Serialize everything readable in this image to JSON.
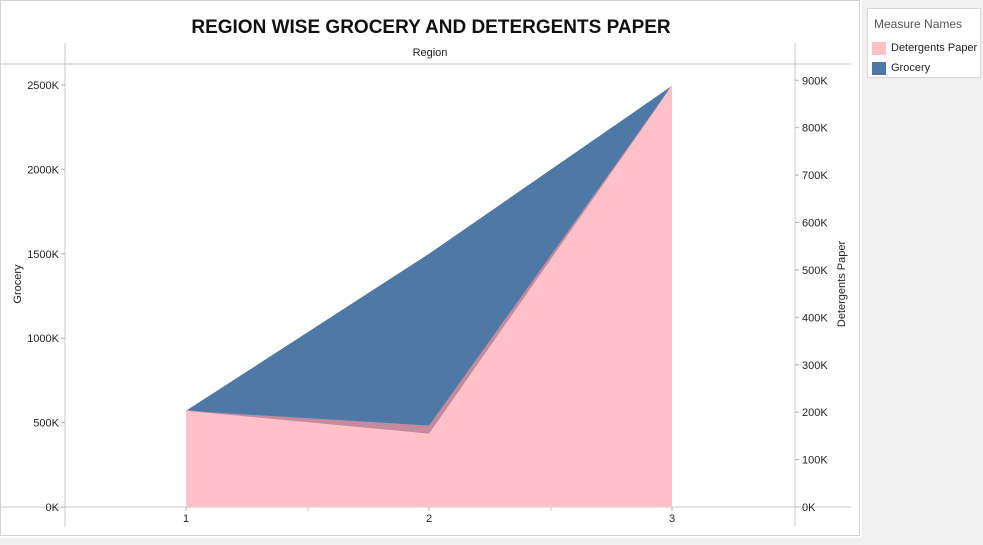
{
  "chart_data": {
    "type": "area",
    "title": "REGION WISE GROCERY AND DETERGENTS PAPER",
    "column_header": "Region",
    "categories": [
      "1",
      "2",
      "3"
    ],
    "left_axis": {
      "label": "Grocery",
      "ylim": [
        0,
        2500000
      ],
      "ticks": [
        {
          "value": 0,
          "label": "0K"
        },
        {
          "value": 500000,
          "label": "500K"
        },
        {
          "value": 1000000,
          "label": "1000K"
        },
        {
          "value": 1500000,
          "label": "1500K"
        },
        {
          "value": 2000000,
          "label": "2000K"
        },
        {
          "value": 2500000,
          "label": "2500K"
        }
      ]
    },
    "right_axis": {
      "label": "Detergents Paper",
      "ylim": [
        0,
        890000
      ],
      "ticks": [
        {
          "value": 0,
          "label": "0K"
        },
        {
          "value": 100000,
          "label": "100K"
        },
        {
          "value": 200000,
          "label": "200K"
        },
        {
          "value": 300000,
          "label": "300K"
        },
        {
          "value": 400000,
          "label": "400K"
        },
        {
          "value": 500000,
          "label": "500K"
        },
        {
          "value": 600000,
          "label": "600K"
        },
        {
          "value": 700000,
          "label": "700K"
        },
        {
          "value": 800000,
          "label": "800K"
        },
        {
          "value": 900000,
          "label": "900K"
        }
      ]
    },
    "series": [
      {
        "name": "Grocery",
        "axis": "left",
        "values": [
          570000,
          1500000,
          2495000
        ],
        "color": "#4e79a7"
      },
      {
        "name": "Detergents Paper",
        "axis": "right",
        "values": [
          204000,
          155000,
          890000
        ],
        "color": "#ffc0c8"
      }
    ],
    "overlap_color": "#c48a9e",
    "legend": {
      "title": "Measure Names",
      "placement": "top-right",
      "items": [
        {
          "label": "Detergents Paper",
          "color": "#ffc0c8"
        },
        {
          "label": "Grocery",
          "color": "#4e79a7"
        }
      ]
    }
  }
}
